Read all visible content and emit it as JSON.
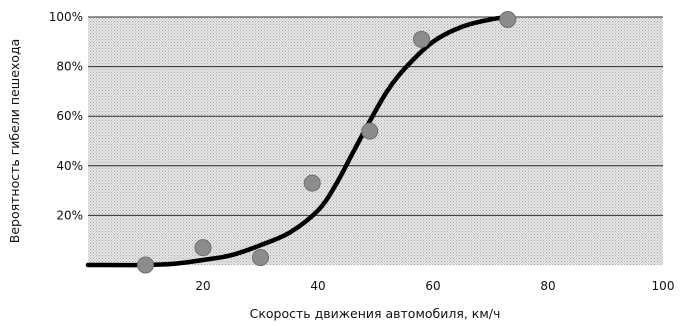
{
  "chart_data": {
    "type": "scatter",
    "title": "",
    "xlabel": "Скорость движения автомобиля, км/ч",
    "ylabel": "Вероятность гибели пешехода",
    "xlim": [
      0,
      100
    ],
    "ylim": [
      0,
      100
    ],
    "x_ticks": [
      {
        "value": 20,
        "label": "20"
      },
      {
        "value": 40,
        "label": "40"
      },
      {
        "value": 60,
        "label": "60"
      },
      {
        "value": 80,
        "label": "80"
      },
      {
        "value": 100,
        "label": "100"
      }
    ],
    "y_ticks": [
      {
        "value": 20,
        "label": "20%"
      },
      {
        "value": 40,
        "label": "40%"
      },
      {
        "value": 60,
        "label": "60%"
      },
      {
        "value": 80,
        "label": "80%"
      },
      {
        "value": 100,
        "label": "100%"
      }
    ],
    "grid": {
      "horizontal": true,
      "vertical": false
    },
    "background": "dotted-gray",
    "points": [
      {
        "x": 10,
        "y": 0
      },
      {
        "x": 20,
        "y": 7
      },
      {
        "x": 30,
        "y": 3
      },
      {
        "x": 39,
        "y": 33
      },
      {
        "x": 49,
        "y": 54
      },
      {
        "x": 58,
        "y": 91
      },
      {
        "x": 73,
        "y": 99
      }
    ],
    "curve": {
      "type": "line",
      "x": [
        0,
        10,
        15,
        20,
        25,
        30,
        35,
        40,
        43,
        46,
        49,
        52,
        55,
        60,
        65,
        70,
        73
      ],
      "y": [
        0,
        0,
        0.5,
        2,
        4,
        8,
        13,
        22,
        32,
        45,
        58,
        70,
        79,
        90,
        96,
        99,
        100
      ]
    },
    "colors": {
      "points": "#8c8c8c",
      "curve": "#000000",
      "grid": "#2b2b2b"
    }
  }
}
